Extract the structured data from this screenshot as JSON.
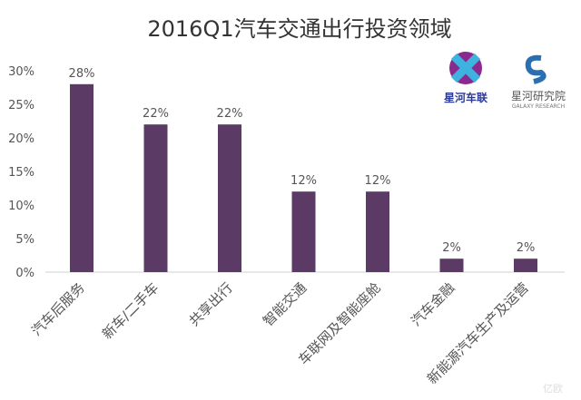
{
  "chart_data": {
    "type": "bar",
    "title": "2016Q1汽车交通出行投资领域",
    "categories": [
      "汽车后服务",
      "新车/二手车",
      "共享出行",
      "智能交通",
      "车联网及智能座舱",
      "汽车金融",
      "新能源汽车生产及运营"
    ],
    "values": [
      28,
      22,
      22,
      12,
      12,
      2,
      2
    ],
    "data_labels": [
      "28%",
      "22%",
      "22%",
      "12%",
      "12%",
      "2%",
      "2%"
    ],
    "yticks": [
      "0%",
      "5%",
      "10%",
      "15%",
      "20%",
      "25%",
      "30%"
    ],
    "ytick_values": [
      0,
      5,
      10,
      15,
      20,
      25,
      30
    ],
    "ylim": [
      0,
      30
    ],
    "xlabel": "",
    "ylabel": "",
    "grid": false,
    "bar_color": "#5b3a66"
  },
  "logos": {
    "left": "星河车联",
    "right": "星河研究院",
    "right_sub": "GALAXY RESEARCH",
    "watermark": "星河车联",
    "watermark2": "星河研究院",
    "corner": "亿欧"
  }
}
